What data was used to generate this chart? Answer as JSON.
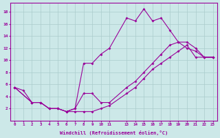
{
  "xlabel": "Windchill (Refroidissement éolien,°C)",
  "bg_color": "#cce8e8",
  "line_color": "#990099",
  "grid_color": "#aacccc",
  "xmin": -0.5,
  "xmax": 23.5,
  "ymin": 0,
  "ymax": 19.5,
  "xticks": [
    0,
    1,
    2,
    3,
    4,
    5,
    6,
    7,
    8,
    9,
    10,
    11,
    13,
    14,
    15,
    16,
    17,
    18,
    19,
    20,
    21,
    22,
    23
  ],
  "yticks": [
    2,
    4,
    6,
    8,
    10,
    12,
    14,
    16,
    18
  ],
  "line1_x": [
    0,
    1,
    2,
    3,
    4,
    5,
    6,
    7,
    8,
    9,
    10,
    11,
    13,
    14,
    15,
    16,
    17,
    18,
    19,
    20,
    21,
    22,
    23
  ],
  "line1_y": [
    5.5,
    5.0,
    3.0,
    3.0,
    2.0,
    2.0,
    1.5,
    2.0,
    9.5,
    9.5,
    11.0,
    12.0,
    17.0,
    16.5,
    18.5,
    16.5,
    17.0,
    15.0,
    13.0,
    12.0,
    11.5,
    10.5,
    10.5
  ],
  "line2_x": [
    0,
    2,
    3,
    4,
    5,
    6,
    7,
    8,
    9,
    10,
    11,
    13,
    14,
    15,
    16,
    17,
    18,
    19,
    20,
    21,
    22,
    23
  ],
  "line2_y": [
    5.5,
    3.0,
    3.0,
    2.0,
    2.0,
    1.5,
    2.0,
    4.5,
    4.5,
    3.0,
    3.0,
    5.5,
    6.5,
    8.0,
    9.5,
    11.0,
    12.5,
    13.0,
    13.0,
    12.0,
    10.5,
    10.5
  ],
  "line3_x": [
    0,
    2,
    3,
    4,
    5,
    6,
    7,
    8,
    9,
    10,
    11,
    13,
    14,
    15,
    16,
    17,
    18,
    19,
    20,
    21,
    22,
    23
  ],
  "line3_y": [
    5.5,
    3.0,
    3.0,
    2.0,
    2.0,
    1.5,
    1.5,
    1.5,
    1.5,
    2.0,
    2.5,
    4.5,
    5.5,
    7.0,
    8.5,
    9.5,
    10.5,
    11.5,
    12.5,
    10.5,
    10.5,
    10.5
  ]
}
